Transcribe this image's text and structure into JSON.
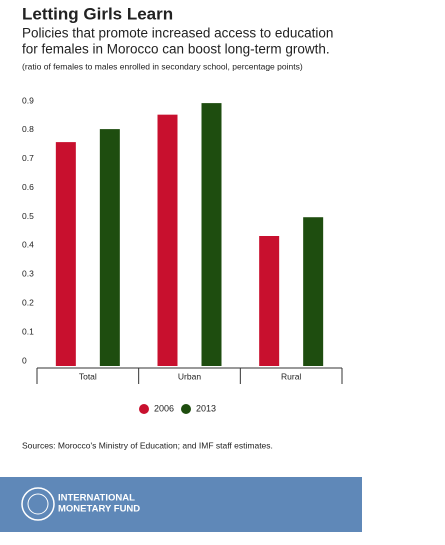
{
  "chart_data": {
    "type": "bar",
    "title": "Letting Girls Learn",
    "subtitle": [
      "Policies that promote increased access to education",
      "for females in Morocco can boost long-term growth."
    ],
    "note": "(ratio of females to males enrolled in secondary school, percentage points)",
    "categories": [
      "Total",
      "Urban",
      "Rural"
    ],
    "series": [
      {
        "name": "2006",
        "color": "#c8102e",
        "values": [
          0.775,
          0.87,
          0.45
        ]
      },
      {
        "name": "2013",
        "color": "#1e4d0f",
        "values": [
          0.82,
          0.91,
          0.515
        ]
      }
    ],
    "ylim": [
      0,
      0.9
    ],
    "yticks": [
      0,
      0.1,
      0.2,
      0.3,
      0.4,
      0.5,
      0.6,
      0.7,
      0.8,
      0.9
    ],
    "grid": false,
    "legend": "bottom",
    "source": "Sources: Morocco's Ministry of Education; and IMF staff estimates.",
    "logo_text": [
      "INTERNATIONAL",
      "MONETARY FUND"
    ]
  }
}
